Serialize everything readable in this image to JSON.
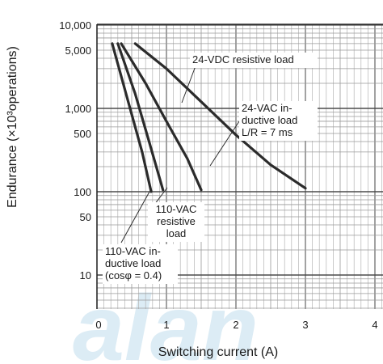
{
  "chart_data": {
    "type": "line",
    "xlabel": "Switching current (A)",
    "ylabel": "Endurance (×10³operations)",
    "xlim": [
      0,
      4.3
    ],
    "ylim": [
      4,
      10000
    ],
    "yscale": "log",
    "grid": true,
    "x_tick_labels": [
      "0",
      "1",
      "2",
      "3",
      "4"
    ],
    "y_tick_labels": [
      "10,000",
      "5,000",
      "1,000",
      "500",
      "100",
      "50",
      "10"
    ],
    "y_tick_values": [
      10000,
      5000,
      1000,
      500,
      100,
      50,
      10
    ],
    "watermark": "alan",
    "series": [
      {
        "name": "24-VDC resistive load",
        "x": [
          0.55,
          1.0,
          1.5,
          2.0,
          2.5,
          3.0
        ],
        "y": [
          6000,
          3000,
          1200,
          480,
          210,
          110
        ]
      },
      {
        "name": "24-VAC inductive load L/R = 7 ms",
        "x": [
          0.35,
          0.7,
          1.0,
          1.3,
          1.5
        ],
        "y": [
          6000,
          2000,
          700,
          250,
          105
        ]
      },
      {
        "name": "110-VAC resistive load",
        "x": [
          0.3,
          0.55,
          0.75,
          0.95
        ],
        "y": [
          6000,
          1500,
          400,
          105
        ]
      },
      {
        "name": "110-VAC inductive load (cosφ = 0.4)",
        "x": [
          0.22,
          0.45,
          0.65,
          0.78
        ],
        "y": [
          6000,
          1200,
          300,
          100
        ]
      }
    ],
    "annotations": [
      {
        "lines": [
          "24-VDC resistive load"
        ]
      },
      {
        "lines": [
          "24-VAC in-",
          "ductive load",
          "L/R = 7 ms"
        ]
      },
      {
        "lines": [
          "110-VAC",
          "resistive",
          "load"
        ]
      },
      {
        "lines": [
          "110-VAC in-",
          "ductive load",
          "(cosφ = 0.4)"
        ]
      }
    ]
  }
}
